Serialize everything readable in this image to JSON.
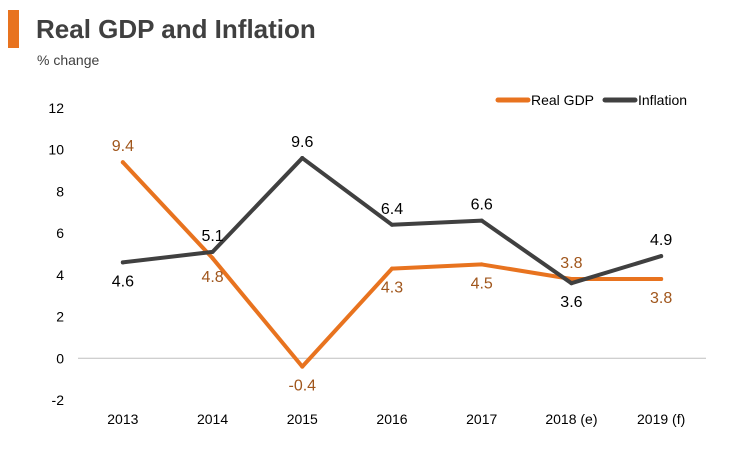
{
  "header": {
    "title": "Real GDP and Inflation",
    "subtitle": "% change"
  },
  "chart_data": {
    "type": "line",
    "title": "Real GDP and Inflation",
    "subtitle": "% change",
    "xlabel": "",
    "ylabel": "% change",
    "categories": [
      "2013",
      "2014",
      "2015",
      "2016",
      "2017",
      "2018 (e)",
      "2019 (f)"
    ],
    "ylim": [
      -2,
      12
    ],
    "yticks": [
      -2,
      0,
      2,
      4,
      6,
      8,
      10,
      12
    ],
    "grid": false,
    "legend_position": "top-right",
    "series": [
      {
        "name": "Real GDP",
        "color": "#e8731f",
        "label_color": "#a0561c",
        "values": [
          9.4,
          4.8,
          -0.4,
          4.3,
          4.5,
          3.8,
          3.8
        ],
        "labels": [
          "9.4",
          "4.8",
          "-0.4",
          "4.3",
          "4.5",
          "3.8",
          "3.8"
        ],
        "label_side": [
          "above",
          "below",
          "below",
          "below",
          "below",
          "above",
          "below"
        ]
      },
      {
        "name": "Inflation",
        "color": "#404040",
        "label_color": "#000000",
        "values": [
          4.6,
          5.1,
          9.6,
          6.4,
          6.6,
          3.6,
          4.9
        ],
        "labels": [
          "4.6",
          "5.1",
          "9.6",
          "6.4",
          "6.6",
          "3.6",
          "4.9"
        ],
        "label_side": [
          "below",
          "above",
          "above",
          "above",
          "above",
          "below",
          "above"
        ]
      }
    ]
  }
}
